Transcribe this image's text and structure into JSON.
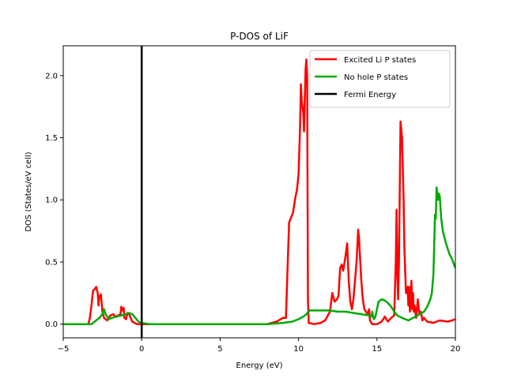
{
  "chart_data": {
    "type": "line",
    "title": "P-DOS of LiF",
    "xlabel": "Energy (eV)",
    "ylabel": "DOS (States/eV cell)",
    "xlim": [
      -5,
      20
    ],
    "ylim": [
      -0.11,
      2.24
    ],
    "xticks": [
      -5,
      0,
      5,
      10,
      15,
      20
    ],
    "yticks": [
      0.0,
      0.5,
      1.0,
      1.5,
      2.0
    ],
    "xtick_labels": [
      "−5",
      "0",
      "5",
      "10",
      "15",
      "20"
    ],
    "ytick_labels": [
      "0.0",
      "0.5",
      "1.0",
      "1.5",
      "2.0"
    ],
    "legend_position": "top-right",
    "grid": false,
    "fermi_energy": 0,
    "series": [
      {
        "name": "Excited Li P states",
        "color": "#ff0000",
        "points": [
          [
            -5,
            0
          ],
          [
            -3.4,
            0
          ],
          [
            -3.3,
            0.05
          ],
          [
            -3.2,
            0.15
          ],
          [
            -3.1,
            0.27
          ],
          [
            -3.0,
            0.28
          ],
          [
            -2.9,
            0.3
          ],
          [
            -2.8,
            0.25
          ],
          [
            -2.75,
            0.15
          ],
          [
            -2.7,
            0.22
          ],
          [
            -2.6,
            0.24
          ],
          [
            -2.5,
            0.1
          ],
          [
            -2.4,
            0.05
          ],
          [
            -2.2,
            0.03
          ],
          [
            -2.0,
            0.07
          ],
          [
            -1.8,
            0.08
          ],
          [
            -1.7,
            0.06
          ],
          [
            -1.5,
            0.07
          ],
          [
            -1.35,
            0.08
          ],
          [
            -1.3,
            0.14
          ],
          [
            -1.2,
            0.11
          ],
          [
            -1.15,
            0.13
          ],
          [
            -1.1,
            0.05
          ],
          [
            -1.0,
            0.04
          ],
          [
            -0.9,
            0.09
          ],
          [
            -0.8,
            0.08
          ],
          [
            -0.6,
            0.02
          ],
          [
            -0.3,
            0
          ],
          [
            8.0,
            0
          ],
          [
            8.6,
            0.02
          ],
          [
            9.0,
            0.05
          ],
          [
            9.2,
            0.05
          ],
          [
            9.3,
            0.45
          ],
          [
            9.4,
            0.82
          ],
          [
            9.5,
            0.85
          ],
          [
            9.65,
            0.9
          ],
          [
            9.8,
            1.02
          ],
          [
            9.9,
            1.08
          ],
          [
            10.0,
            1.2
          ],
          [
            10.1,
            1.6
          ],
          [
            10.15,
            1.93
          ],
          [
            10.2,
            1.8
          ],
          [
            10.3,
            1.7
          ],
          [
            10.35,
            1.55
          ],
          [
            10.45,
            2.05
          ],
          [
            10.5,
            2.13
          ],
          [
            10.55,
            2.0
          ],
          [
            10.6,
            0.2
          ],
          [
            10.65,
            0.01
          ],
          [
            11.0,
            0
          ],
          [
            11.4,
            0.01
          ],
          [
            11.7,
            0.03
          ],
          [
            12.0,
            0.1
          ],
          [
            12.15,
            0.25
          ],
          [
            12.3,
            0.18
          ],
          [
            12.45,
            0.2
          ],
          [
            12.55,
            0.23
          ],
          [
            12.65,
            0.45
          ],
          [
            12.75,
            0.48
          ],
          [
            12.85,
            0.43
          ],
          [
            13.0,
            0.55
          ],
          [
            13.1,
            0.65
          ],
          [
            13.2,
            0.35
          ],
          [
            13.3,
            0.18
          ],
          [
            13.4,
            0.12
          ],
          [
            13.5,
            0.2
          ],
          [
            13.6,
            0.35
          ],
          [
            13.7,
            0.5
          ],
          [
            13.8,
            0.76
          ],
          [
            13.85,
            0.7
          ],
          [
            14.0,
            0.35
          ],
          [
            14.1,
            0.2
          ],
          [
            14.2,
            0.12
          ],
          [
            14.3,
            0.1
          ],
          [
            14.4,
            0.08
          ],
          [
            14.5,
            0.12
          ],
          [
            14.55,
            0.03
          ],
          [
            14.7,
            0.0
          ],
          [
            15.0,
            0.0
          ],
          [
            15.3,
            0.02
          ],
          [
            15.5,
            0.06
          ],
          [
            15.6,
            0.04
          ],
          [
            15.7,
            0.02
          ],
          [
            15.9,
            0.05
          ],
          [
            16.1,
            0.07
          ],
          [
            16.2,
            0.5
          ],
          [
            16.25,
            0.92
          ],
          [
            16.3,
            0.4
          ],
          [
            16.35,
            0.2
          ],
          [
            16.4,
            0.5
          ],
          [
            16.5,
            1.63
          ],
          [
            16.6,
            1.5
          ],
          [
            16.7,
            1.0
          ],
          [
            16.75,
            0.6
          ],
          [
            16.85,
            0.25
          ],
          [
            16.95,
            0.3
          ],
          [
            17.0,
            0.15
          ],
          [
            17.05,
            0.3
          ],
          [
            17.1,
            0.1
          ],
          [
            17.2,
            0.35
          ],
          [
            17.25,
            0.12
          ],
          [
            17.3,
            0.25
          ],
          [
            17.35,
            0.1
          ],
          [
            17.4,
            0.15
          ],
          [
            17.5,
            0.05
          ],
          [
            17.6,
            0.2
          ],
          [
            17.7,
            0.08
          ],
          [
            17.8,
            0.1
          ],
          [
            17.9,
            0.03
          ],
          [
            18.0,
            0.05
          ],
          [
            18.2,
            0.02
          ],
          [
            18.6,
            0.01
          ],
          [
            19.0,
            0.03
          ],
          [
            19.5,
            0.02
          ],
          [
            19.8,
            0.03
          ],
          [
            20.0,
            0.04
          ]
        ]
      },
      {
        "name": "No hole P states",
        "color": "#00aa00",
        "points": [
          [
            -5,
            0
          ],
          [
            -3.2,
            0
          ],
          [
            -3.0,
            0.02
          ],
          [
            -2.7,
            0.05
          ],
          [
            -2.5,
            0.08
          ],
          [
            -2.4,
            0.12
          ],
          [
            -2.3,
            0.08
          ],
          [
            -2.1,
            0.04
          ],
          [
            -1.9,
            0.05
          ],
          [
            -1.6,
            0.06
          ],
          [
            -1.3,
            0.07
          ],
          [
            -1.0,
            0.08
          ],
          [
            -0.8,
            0.09
          ],
          [
            -0.6,
            0.08
          ],
          [
            -0.4,
            0.05
          ],
          [
            -0.2,
            0.02
          ],
          [
            0,
            0.01
          ],
          [
            0.5,
            0
          ],
          [
            8.0,
            0
          ],
          [
            9.0,
            0.01
          ],
          [
            9.6,
            0.02
          ],
          [
            10.0,
            0.04
          ],
          [
            10.3,
            0.06
          ],
          [
            10.5,
            0.08
          ],
          [
            10.7,
            0.11
          ],
          [
            11.0,
            0.11
          ],
          [
            11.5,
            0.11
          ],
          [
            12.0,
            0.11
          ],
          [
            12.5,
            0.1
          ],
          [
            13.0,
            0.1
          ],
          [
            13.5,
            0.09
          ],
          [
            14.0,
            0.08
          ],
          [
            14.5,
            0.07
          ],
          [
            14.65,
            0.06
          ],
          [
            14.7,
            0.1
          ],
          [
            14.8,
            0.04
          ],
          [
            14.9,
            0.06
          ],
          [
            15.1,
            0.18
          ],
          [
            15.3,
            0.2
          ],
          [
            15.5,
            0.19
          ],
          [
            15.7,
            0.17
          ],
          [
            15.9,
            0.14
          ],
          [
            16.1,
            0.1
          ],
          [
            16.3,
            0.07
          ],
          [
            16.6,
            0.05
          ],
          [
            16.8,
            0.04
          ],
          [
            17.0,
            0.03
          ],
          [
            17.3,
            0.05
          ],
          [
            17.6,
            0.07
          ],
          [
            18.0,
            0.1
          ],
          [
            18.2,
            0.14
          ],
          [
            18.4,
            0.2
          ],
          [
            18.5,
            0.25
          ],
          [
            18.6,
            0.4
          ],
          [
            18.7,
            0.88
          ],
          [
            18.75,
            0.85
          ],
          [
            18.8,
            1.1
          ],
          [
            18.85,
            1.05
          ],
          [
            18.9,
            1.0
          ],
          [
            18.95,
            1.05
          ],
          [
            19.0,
            1.03
          ],
          [
            19.1,
            0.85
          ],
          [
            19.2,
            0.75
          ],
          [
            19.4,
            0.65
          ],
          [
            19.6,
            0.57
          ],
          [
            19.8,
            0.52
          ],
          [
            20.0,
            0.45
          ]
        ]
      },
      {
        "name": "Fermi Energy",
        "color": "#000000",
        "points": [
          [
            0,
            -0.11
          ],
          [
            0,
            2.24
          ]
        ]
      }
    ]
  }
}
